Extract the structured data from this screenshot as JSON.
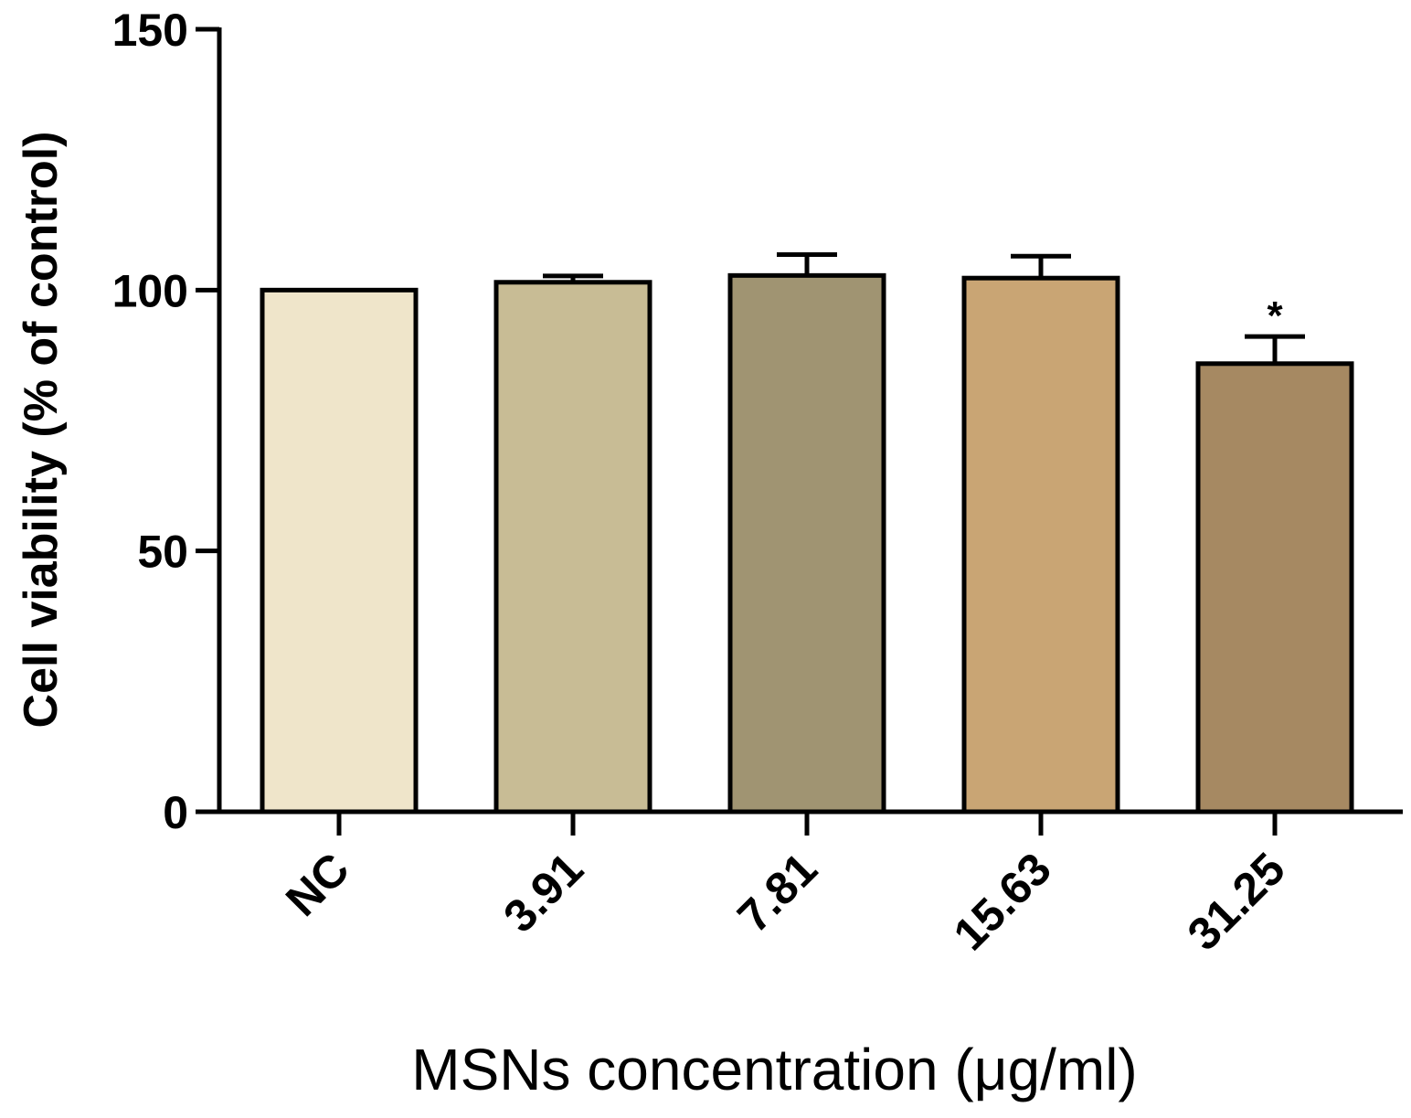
{
  "chart_data": {
    "type": "bar",
    "title": "",
    "xlabel": "MSNs concentration (μg/ml)",
    "ylabel": "Cell viability (% of control)",
    "categories": [
      "NC",
      "3.91",
      "7.81",
      "15.63",
      "31.25"
    ],
    "values": [
      100,
      101.5,
      102.8,
      102.3,
      85.9
    ],
    "error_upper": [
      0,
      1.2,
      4,
      4.2,
      5.2
    ],
    "colors": [
      "#EFE5CA",
      "#C8BC95",
      "#A09472",
      "#C9A574",
      "#A68962"
    ],
    "annotations": [
      "",
      "",
      "",
      "",
      "*"
    ],
    "ylim": [
      0,
      150
    ],
    "yticks": [
      0,
      50,
      100,
      150
    ],
    "grid": false
  }
}
